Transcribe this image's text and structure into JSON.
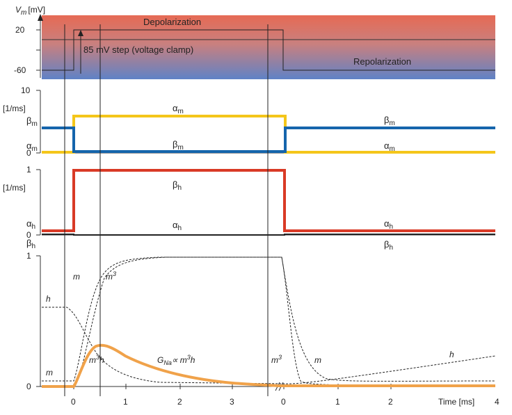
{
  "panel_vm": {
    "axis_v": "V",
    "axis_sub": "m",
    "axis_unit": "[mV]",
    "ticks": [
      "20",
      "-60"
    ],
    "depolarization": "Depolarization",
    "repolarization": "Repolarization",
    "step": "85 mV step (voltage clamp)"
  },
  "panel_m": {
    "unit": "[1/ms]",
    "ticks": [
      "10",
      "0"
    ],
    "alpha_sym": "α",
    "beta_sym": "β",
    "sub": "m"
  },
  "panel_h": {
    "unit": "[1/ms]",
    "ticks": [
      "1",
      "0"
    ],
    "alpha_sym": "α",
    "beta_sym": "β",
    "sub": "h"
  },
  "panel_g": {
    "ticks_y": [
      "1",
      "0"
    ],
    "ticks_x": [
      "0",
      "1",
      "2",
      "3",
      "0",
      "1",
      "2"
    ],
    "x_label": "Time [ms]",
    "x_last": "4",
    "label_m": "m",
    "label_m3": "m",
    "sup3": "3",
    "label_h": "h",
    "label_m3h": "m",
    "label_m3h_h": "h",
    "g_label": "G",
    "g_sub": "Na",
    "g_rel": "∝ m",
    "g_rel_h": "h"
  },
  "colors": {
    "yellow": "#f4c61a",
    "blue": "#1565ac",
    "red": "#d93a26",
    "orange": "#f0a24a",
    "grad_top": "#e66a54",
    "grad_bottom": "#5f82c6"
  }
}
